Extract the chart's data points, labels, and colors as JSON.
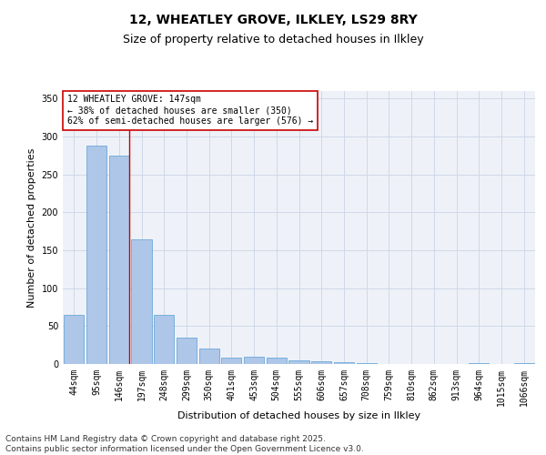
{
  "title_line1": "12, WHEATLEY GROVE, ILKLEY, LS29 8RY",
  "title_line2": "Size of property relative to detached houses in Ilkley",
  "xlabel": "Distribution of detached houses by size in Ilkley",
  "ylabel": "Number of detached properties",
  "categories": [
    "44sqm",
    "95sqm",
    "146sqm",
    "197sqm",
    "248sqm",
    "299sqm",
    "350sqm",
    "401sqm",
    "453sqm",
    "504sqm",
    "555sqm",
    "606sqm",
    "657sqm",
    "708sqm",
    "759sqm",
    "810sqm",
    "862sqm",
    "913sqm",
    "964sqm",
    "1015sqm",
    "1066sqm"
  ],
  "values": [
    65,
    288,
    275,
    165,
    65,
    35,
    21,
    8,
    10,
    8,
    5,
    4,
    2,
    1,
    0,
    0,
    0,
    0,
    1,
    0,
    1
  ],
  "bar_color": "#aec6e8",
  "bar_edge_color": "#5a9fd4",
  "grid_color": "#d0d8e8",
  "background_color": "#eef2f8",
  "annotation_box_text": "12 WHEATLEY GROVE: 147sqm\n← 38% of detached houses are smaller (350)\n62% of semi-detached houses are larger (576) →",
  "annotation_box_color": "#ffffff",
  "annotation_box_edge_color": "#cc0000",
  "vline_x_index": 2,
  "vline_color": "#cc0000",
  "ylim": [
    0,
    360
  ],
  "yticks": [
    0,
    50,
    100,
    150,
    200,
    250,
    300,
    350
  ],
  "footer_text": "Contains HM Land Registry data © Crown copyright and database right 2025.\nContains public sector information licensed under the Open Government Licence v3.0.",
  "title_fontsize": 10,
  "subtitle_fontsize": 9,
  "axis_label_fontsize": 8,
  "tick_fontsize": 7,
  "annotation_fontsize": 7,
  "footer_fontsize": 6.5
}
